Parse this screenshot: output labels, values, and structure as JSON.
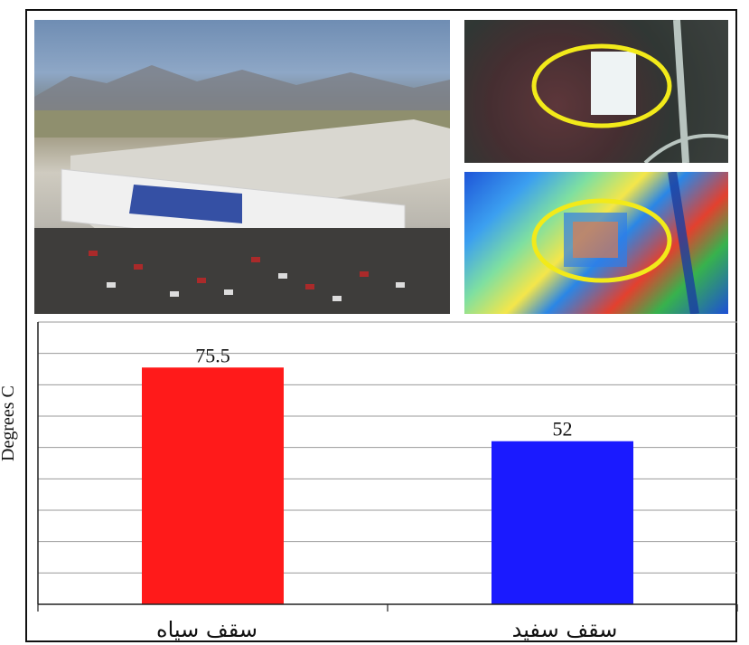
{
  "photos": {
    "main": "aerial-warehouse-photo",
    "satellite": "satellite-image",
    "thermal": "thermal-image"
  },
  "chart_data": {
    "type": "bar",
    "categories": [
      "سقف سیاه",
      "سقف سفید"
    ],
    "values": [
      75.5,
      52
    ],
    "value_labels": [
      "75.5",
      "52"
    ],
    "colors": [
      "#ff1a1a",
      "#1a1aff"
    ],
    "title": "",
    "xlabel": "",
    "ylabel": "Degrees C",
    "ylim": [
      0,
      90
    ],
    "grid": true
  }
}
